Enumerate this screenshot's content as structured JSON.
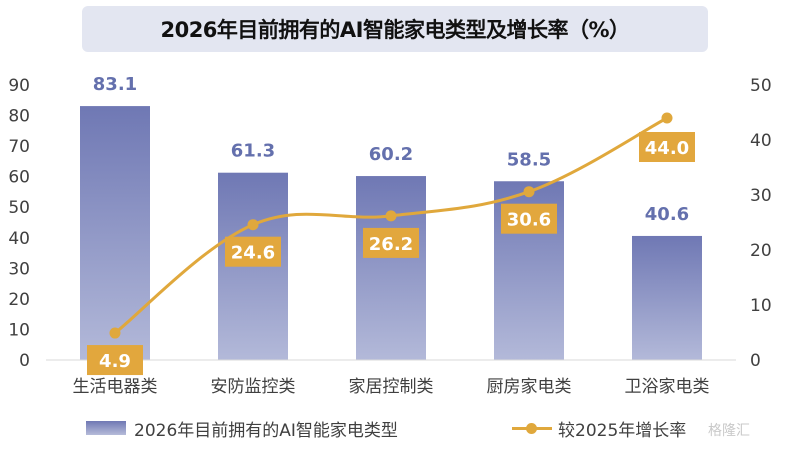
{
  "chart_data": {
    "type": "bar+line",
    "title": "2026年目前拥有的AI智能家电类型及增长率（%）",
    "categories": [
      "生活电器类",
      "安防监控类",
      "家居控制类",
      "厨房家电类",
      "卫浴家电类"
    ],
    "series": [
      {
        "name": "2026年目前拥有的AI智能家电类型",
        "type": "bar",
        "axis": "left",
        "values": [
          83.1,
          61.3,
          60.2,
          58.5,
          40.6
        ],
        "color": "#6f78b4"
      },
      {
        "name": "较2025年增长率",
        "type": "line",
        "axis": "right",
        "values": [
          4.9,
          24.6,
          26.2,
          30.6,
          44.0
        ],
        "color": "#e0a83c"
      }
    ],
    "y_left": {
      "min": 0,
      "max": 90,
      "ticks": [
        0,
        10,
        20,
        30,
        40,
        50,
        60,
        70,
        80,
        90
      ]
    },
    "y_right": {
      "min": 0,
      "max": 50,
      "ticks": [
        0,
        10,
        20,
        30,
        40,
        50
      ]
    },
    "bar_labels": [
      "83.1",
      "61.3",
      "60.2",
      "58.5",
      "40.6"
    ],
    "line_labels": [
      "4.9",
      "24.6",
      "26.2",
      "30.6",
      "44.0"
    ],
    "grid": false,
    "legend_position": "bottom"
  },
  "watermark": "格隆汇"
}
